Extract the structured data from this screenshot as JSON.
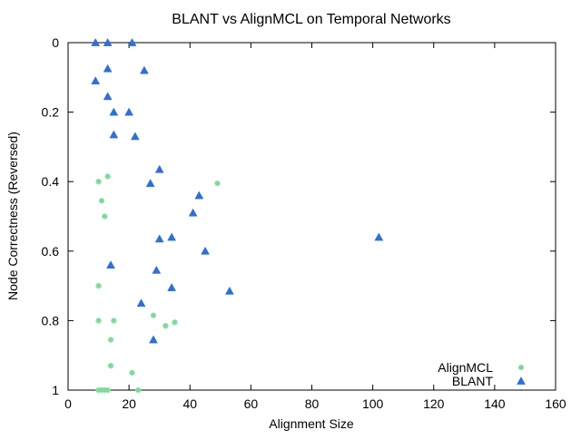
{
  "chart_data": {
    "type": "scatter",
    "title": "BLANT vs AlignMCL on Temporal Networks",
    "xlabel": "Alignment Size",
    "ylabel": "Node Correctness (Reversed)",
    "xlim": [
      0,
      160
    ],
    "ylim": [
      0,
      1
    ],
    "y_reversed": true,
    "x_ticks": [
      0,
      20,
      40,
      60,
      80,
      100,
      120,
      140,
      160
    ],
    "y_ticks": [
      0,
      0.2,
      0.4,
      0.6,
      0.8,
      1
    ],
    "x_tick_labels": [
      "0",
      "20",
      "40",
      "60",
      "80",
      "100",
      "120",
      "140",
      "160"
    ],
    "y_tick_labels": [
      "0",
      "0.2",
      "0.4",
      "0.6",
      "0.8",
      "1"
    ],
    "grid": false,
    "legend_position": "bottom-right",
    "series": [
      {
        "name": "AlignMCL",
        "marker": "asterisk",
        "color": "#7fd89a",
        "points": [
          [
            10,
            0.4
          ],
          [
            13,
            0.385
          ],
          [
            11,
            0.455
          ],
          [
            12,
            0.5
          ],
          [
            49,
            0.405
          ],
          [
            10,
            0.7
          ],
          [
            10,
            0.8
          ],
          [
            15,
            0.8
          ],
          [
            28,
            0.785
          ],
          [
            32,
            0.815
          ],
          [
            35,
            0.805
          ],
          [
            14,
            0.855
          ],
          [
            14,
            0.93
          ],
          [
            21,
            0.95
          ],
          [
            10,
            1.0
          ],
          [
            11,
            1.0
          ],
          [
            12,
            1.0
          ],
          [
            13,
            1.0
          ],
          [
            23,
            1.0
          ]
        ]
      },
      {
        "name": "BLANT",
        "marker": "triangle",
        "color": "#2f6fd6",
        "points": [
          [
            9,
            0
          ],
          [
            13,
            0
          ],
          [
            21,
            0
          ],
          [
            13,
            0.075
          ],
          [
            25,
            0.08
          ],
          [
            9,
            0.11
          ],
          [
            13,
            0.155
          ],
          [
            15,
            0.2
          ],
          [
            20,
            0.2
          ],
          [
            15,
            0.265
          ],
          [
            22,
            0.27
          ],
          [
            30,
            0.365
          ],
          [
            27,
            0.405
          ],
          [
            43,
            0.44
          ],
          [
            41,
            0.49
          ],
          [
            30,
            0.565
          ],
          [
            34,
            0.56
          ],
          [
            45,
            0.6
          ],
          [
            102,
            0.56
          ],
          [
            14,
            0.64
          ],
          [
            29,
            0.655
          ],
          [
            34,
            0.705
          ],
          [
            53,
            0.715
          ],
          [
            24,
            0.75
          ],
          [
            28,
            0.855
          ]
        ]
      }
    ]
  }
}
